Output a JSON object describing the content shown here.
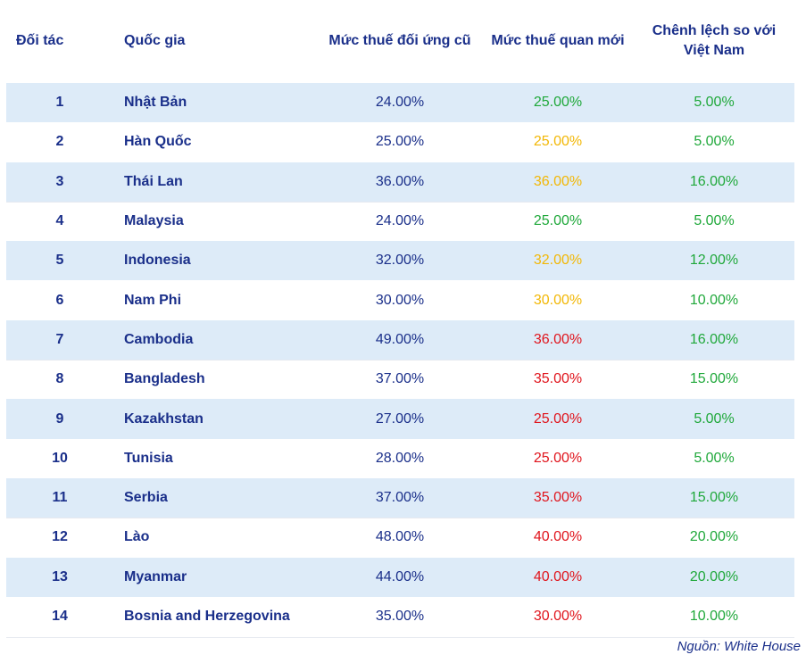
{
  "headers": {
    "partner": "Đối tác",
    "country": "Quốc gia",
    "old_rate": "Mức thuế đối ứng cũ",
    "new_rate": "Mức thuế quan mới",
    "diff": "Chênh lệch so với Việt Nam"
  },
  "rows": [
    {
      "id": "1",
      "country": "Nhật Bản",
      "old": "24.00%",
      "new": "25.00%",
      "new_tone": "green",
      "diff": "5.00%"
    },
    {
      "id": "2",
      "country": "Hàn Quốc",
      "old": "25.00%",
      "new": "25.00%",
      "new_tone": "yellow",
      "diff": "5.00%"
    },
    {
      "id": "3",
      "country": "Thái Lan",
      "old": "36.00%",
      "new": "36.00%",
      "new_tone": "yellow",
      "diff": "16.00%"
    },
    {
      "id": "4",
      "country": "Malaysia",
      "old": "24.00%",
      "new": "25.00%",
      "new_tone": "green",
      "diff": "5.00%"
    },
    {
      "id": "5",
      "country": "Indonesia",
      "old": "32.00%",
      "new": "32.00%",
      "new_tone": "yellow",
      "diff": "12.00%"
    },
    {
      "id": "6",
      "country": "Nam Phi",
      "old": "30.00%",
      "new": "30.00%",
      "new_tone": "yellow",
      "diff": "10.00%"
    },
    {
      "id": "7",
      "country": "Cambodia",
      "old": "49.00%",
      "new": "36.00%",
      "new_tone": "red",
      "diff": "16.00%"
    },
    {
      "id": "8",
      "country": "Bangladesh",
      "old": "37.00%",
      "new": "35.00%",
      "new_tone": "red",
      "diff": "15.00%"
    },
    {
      "id": "9",
      "country": "Kazakhstan",
      "old": "27.00%",
      "new": "25.00%",
      "new_tone": "red",
      "diff": "5.00%"
    },
    {
      "id": "10",
      "country": "Tunisia",
      "old": "28.00%",
      "new": "25.00%",
      "new_tone": "red",
      "diff": "5.00%"
    },
    {
      "id": "11",
      "country": "Serbia",
      "old": "37.00%",
      "new": "35.00%",
      "new_tone": "red",
      "diff": "15.00%"
    },
    {
      "id": "12",
      "country": "Lào",
      "old": "48.00%",
      "new": "40.00%",
      "new_tone": "red",
      "diff": "20.00%"
    },
    {
      "id": "13",
      "country": "Myanmar",
      "old": "44.00%",
      "new": "40.00%",
      "new_tone": "red",
      "diff": "20.00%"
    },
    {
      "id": "14",
      "country": "Bosnia and Herzegovina",
      "old": "35.00%",
      "new": "30.00%",
      "new_tone": "red",
      "diff": "10.00%"
    }
  ],
  "colors": {
    "text": "#1a2f8a",
    "shade": "#ddebf8",
    "green": "#1fa83a",
    "yellow": "#f2b705",
    "red": "#e0141c"
  },
  "source": "Nguồn: White House"
}
